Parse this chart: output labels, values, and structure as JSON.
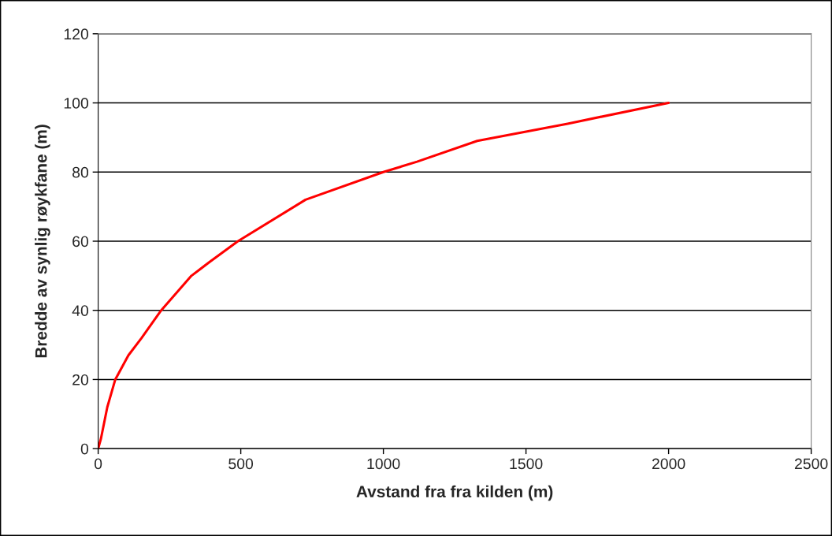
{
  "chart_data": {
    "type": "line",
    "xlabel": "Avstand fra fra kilden (m)",
    "ylabel": "Bredde av synlig røykfane (m)",
    "x": [
      0,
      10,
      32,
      60,
      106,
      152,
      221,
      327,
      391,
      490,
      727,
      1000,
      1118,
      1329,
      1646,
      2000
    ],
    "series": [
      {
        "color": "#ff0000",
        "values": [
          0,
          3,
          12,
          20,
          27,
          32,
          40,
          50,
          54,
          60,
          72,
          80,
          83,
          89,
          94,
          100
        ]
      }
    ],
    "xlim": [
      0,
      2500
    ],
    "xticks": [
      0,
      500,
      1000,
      1500,
      2000,
      2500
    ],
    "ylim": [
      0,
      120
    ],
    "yticks": [
      0,
      20,
      40,
      60,
      80,
      100,
      120
    ],
    "grid": "y",
    "legend": false,
    "marker": "none",
    "line_style": "solid"
  }
}
